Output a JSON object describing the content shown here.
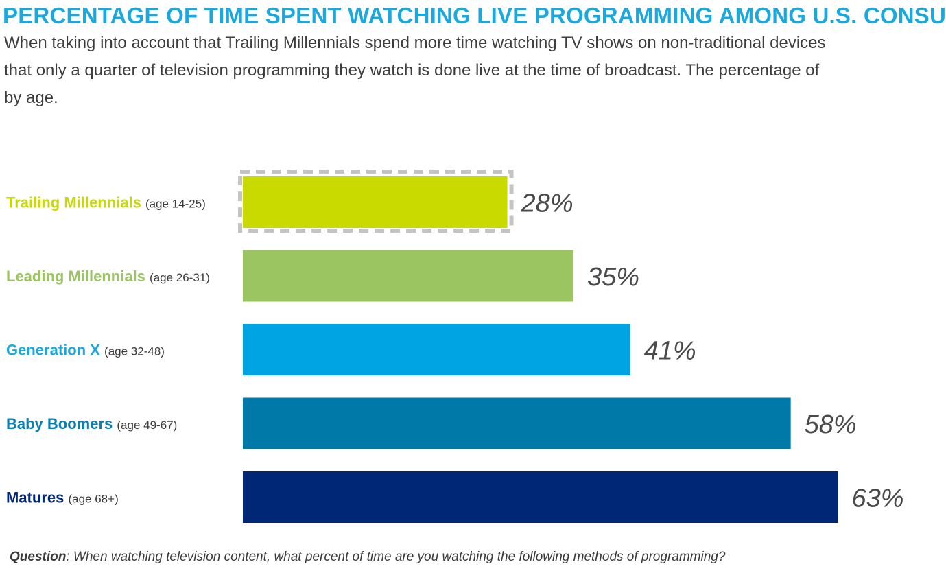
{
  "header": {
    "title": "PERCENTAGE OF TIME SPENT WATCHING LIVE PROGRAMMING AMONG U.S. CONSU",
    "subtitle_lines": [
      "When taking into account that Trailing Millennials spend more time watching TV shows on non-traditional devices",
      "that only a quarter of television programming they watch is done live at the time of broadcast. The percentage of",
      "by age."
    ]
  },
  "chart_data": {
    "type": "bar",
    "orientation": "horizontal",
    "categories": [
      {
        "name": "Trailing Millennials",
        "age": "(age 14-25)",
        "color": "#c8da00",
        "highlighted": true
      },
      {
        "name": "Leading Millennials",
        "age": "(age 26-31)",
        "color": "#9bc560",
        "highlighted": false
      },
      {
        "name": "Generation X",
        "age": "(age 32-48)",
        "color": "#00a4e3",
        "highlighted": false
      },
      {
        "name": "Baby Boomers",
        "age": "(age 49-67)",
        "color": "#0179a8",
        "highlighted": false
      },
      {
        "name": "Matures",
        "age": "(age 68+)",
        "color": "#002776",
        "highlighted": false
      }
    ],
    "values": [
      28,
      35,
      41,
      58,
      63
    ],
    "value_labels": [
      "28%",
      "35%",
      "41%",
      "58%",
      "63%"
    ],
    "category_label_colors": [
      "#c8da00",
      "#9bc560",
      "#1ba8df",
      "#0a7fb0",
      "#002776"
    ],
    "title": "",
    "xlabel": "",
    "ylabel": ""
  },
  "footer": {
    "question_label": "Question",
    "question_text": ": When watching television content, what percent of time are you watching the following methods of programming?"
  }
}
